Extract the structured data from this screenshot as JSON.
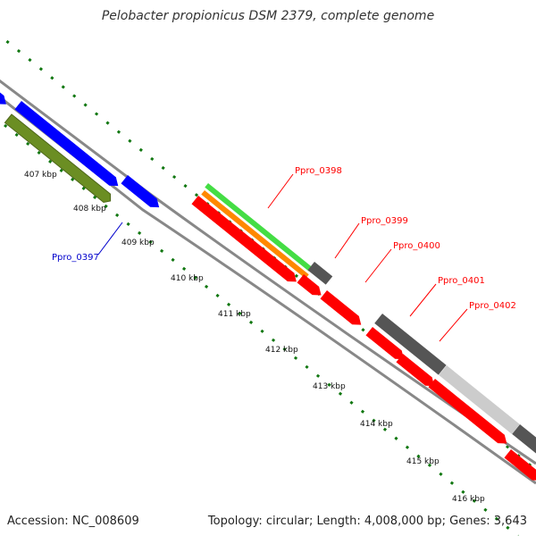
{
  "title": "Pelobacter propionicus DSM 2379, complete genome",
  "footer": {
    "accession": "Accession: NC_008609",
    "summary": "Topology: circular; Length: 4,008,000 bp; Genes: 3,643"
  },
  "ticks": [
    "407 kbp",
    "408 kbp",
    "409 kbp",
    "410 kbp",
    "411 kbp",
    "412 kbp",
    "413 kbp",
    "414 kbp",
    "415 kbp",
    "416 kbp"
  ],
  "gene_labels": [
    "Ppro_0397",
    "Ppro_0398",
    "Ppro_0399",
    "Ppro_0400",
    "Ppro_0401",
    "Ppro_0402"
  ],
  "colors": {
    "blue": "#0000ff",
    "olive": "#6b8e23",
    "green": "#44dd44",
    "orange": "#ff8800",
    "red": "#ff0000",
    "dark_gray": "#555555",
    "light_gray": "#cccccc",
    "backbone": "#888888",
    "dots": "#117711"
  }
}
